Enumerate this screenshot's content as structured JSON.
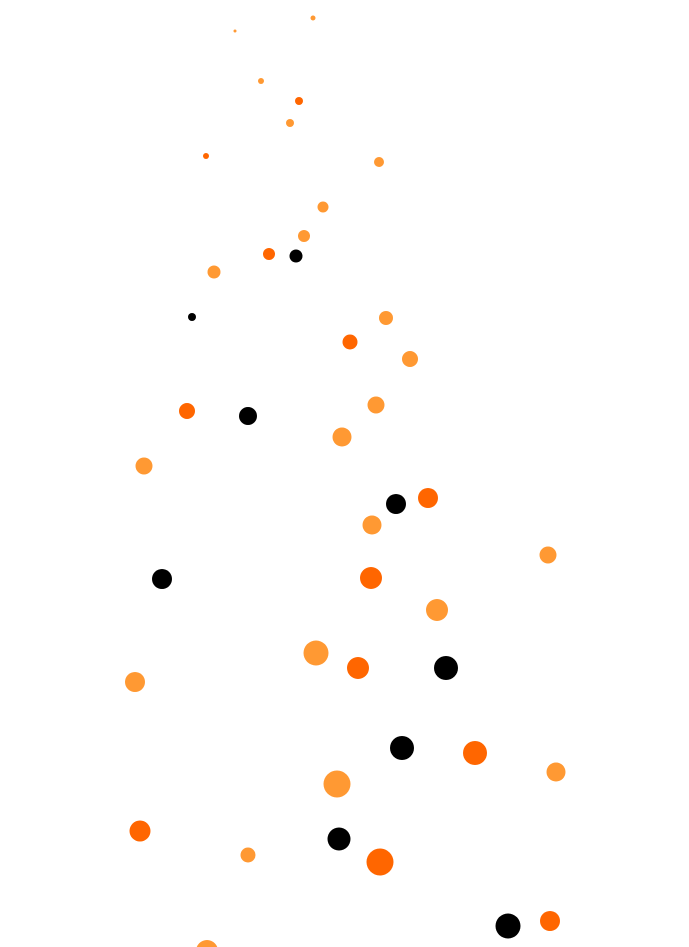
{
  "colors": {
    "light_orange": "#FF9933",
    "dark_orange": "#FF6600",
    "black": "#000000",
    "background": "#FFFFFF"
  }
}
